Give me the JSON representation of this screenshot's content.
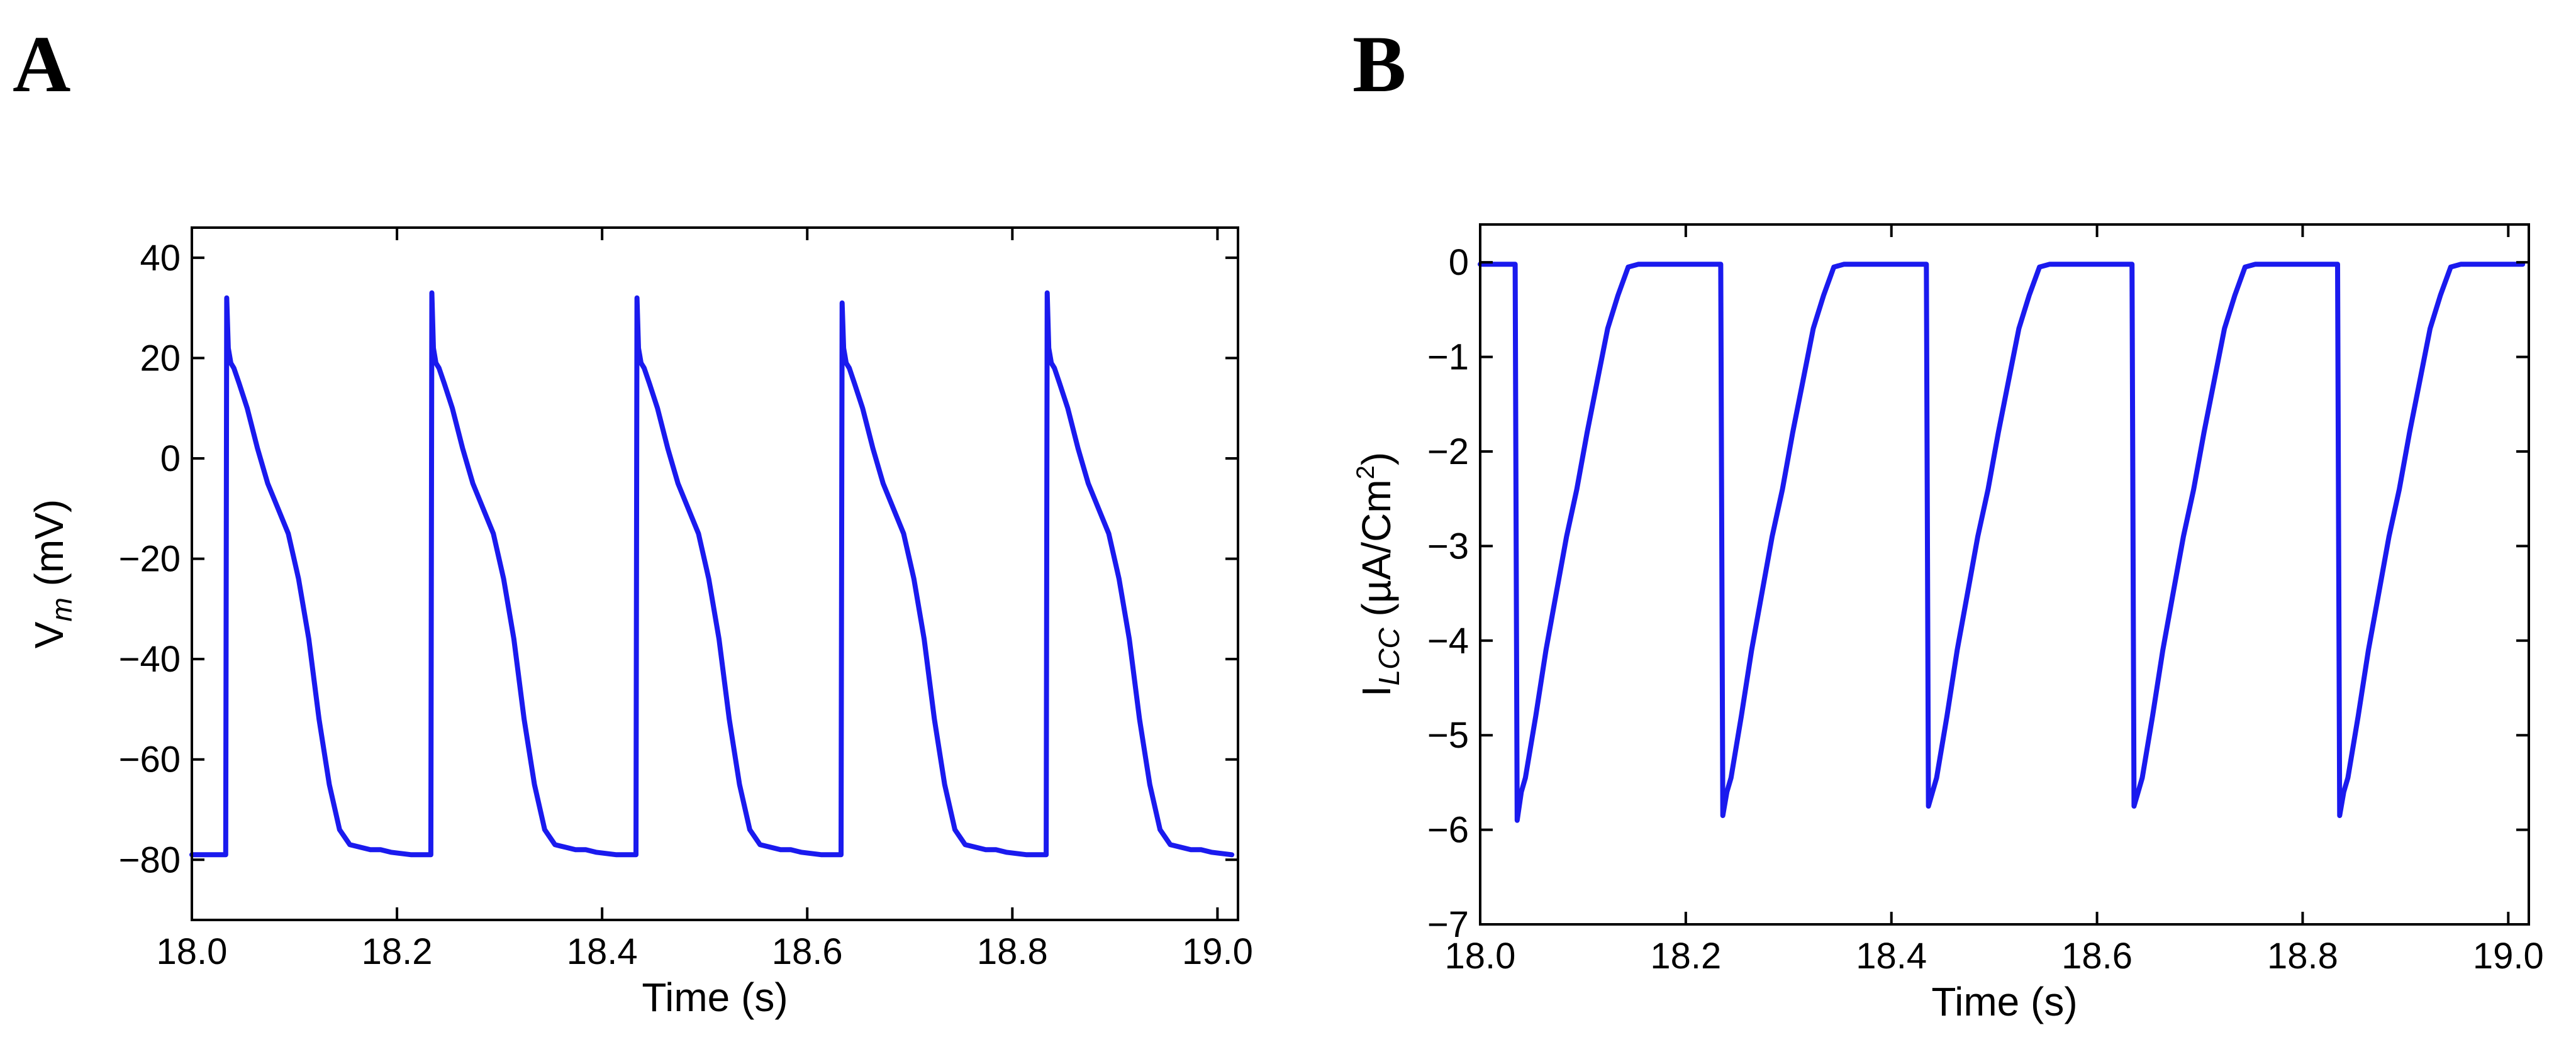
{
  "chart_data": [
    {
      "panel": "A",
      "type": "line",
      "xlabel": "Time (s)",
      "ylabel": {
        "main": "V",
        "sub": "m",
        "rest": " (mV)"
      },
      "xlim": [
        18.0,
        19.02
      ],
      "ylim": [
        -92,
        46
      ],
      "xticks": [
        18.0,
        18.2,
        18.4,
        18.6,
        18.8,
        19.0
      ],
      "xtick_labels": [
        "18.0",
        "18.2",
        "18.4",
        "18.6",
        "18.8",
        "19.0"
      ],
      "yticks": [
        40,
        20,
        0,
        -20,
        -40,
        -60,
        -80
      ],
      "ytick_labels": [
        "40",
        "20",
        "0",
        "−20",
        "−40",
        "−60",
        "−80"
      ],
      "color": "#1a1aee",
      "series": [
        {
          "name": "Vm",
          "pacing_period_s": 0.2,
          "beat_onsets_s": [
            18.034,
            18.234,
            18.434,
            18.634,
            18.834
          ],
          "beat_peaks_mV": [
            32,
            33,
            32,
            31,
            33
          ],
          "beat_template": {
            "t_offset_s": [
              -0.005,
              -0.001,
              0.0,
              0.0015,
              0.004,
              0.007,
              0.012,
              0.02,
              0.03,
              0.04,
              0.05,
              0.06,
              0.07,
              0.08,
              0.09,
              0.1,
              0.11,
              0.12,
              0.13,
              0.14,
              0.15,
              0.16,
              0.18,
              0.199
            ],
            "value_mV": [
              -79,
              -79,
              null,
              22,
              19,
              18,
              15,
              10,
              2,
              -5,
              -10,
              -15,
              -24,
              -36,
              -52,
              -65,
              -74,
              -77,
              -77.5,
              -78,
              -78,
              -78.5,
              -79,
              -79
            ]
          }
        }
      ]
    },
    {
      "panel": "B",
      "type": "line",
      "xlabel": "Time (s)",
      "ylabel": {
        "main": "I",
        "sub": "LCC",
        "rest": " (µA/Cm",
        "sup": "2",
        "close": ")"
      },
      "xlim": [
        18.0,
        19.02
      ],
      "ylim": [
        -7,
        0.4
      ],
      "xticks": [
        18.0,
        18.2,
        18.4,
        18.6,
        18.8,
        19.0
      ],
      "xtick_labels": [
        "18.0",
        "18.2",
        "18.4",
        "18.6",
        "18.8",
        "19.0"
      ],
      "yticks": [
        0,
        -1,
        -2,
        -3,
        -4,
        -5,
        -6,
        -7
      ],
      "ytick_labels": [
        "0",
        "−1",
        "−2",
        "−3",
        "−4",
        "−5",
        "−6",
        "−7"
      ],
      "color": "#1a1aee",
      "series": [
        {
          "name": "ILCC",
          "pacing_period_s": 0.2,
          "beat_onsets_s": [
            18.034,
            18.234,
            18.434,
            18.634,
            18.834
          ],
          "beat_minima": [
            -5.9,
            -5.85,
            -5.75,
            -5.75,
            -5.85
          ],
          "beat_template": {
            "t_offset_s": [
              -0.004,
              -0.001,
              0.0,
              0.002,
              0.006,
              0.01,
              0.02,
              0.03,
              0.04,
              0.05,
              0.06,
              0.07,
              0.08,
              0.09,
              0.1,
              0.11,
              0.12,
              0.14,
              0.16,
              0.18,
              0.199
            ],
            "value": [
              -0.02,
              -0.02,
              -0.02,
              null,
              -5.6,
              -5.45,
              -4.8,
              -4.1,
              -3.5,
              -2.9,
              -2.4,
              -1.8,
              -1.25,
              -0.7,
              -0.35,
              -0.05,
              -0.02,
              -0.02,
              -0.02,
              -0.02,
              -0.02
            ]
          }
        }
      ]
    }
  ]
}
